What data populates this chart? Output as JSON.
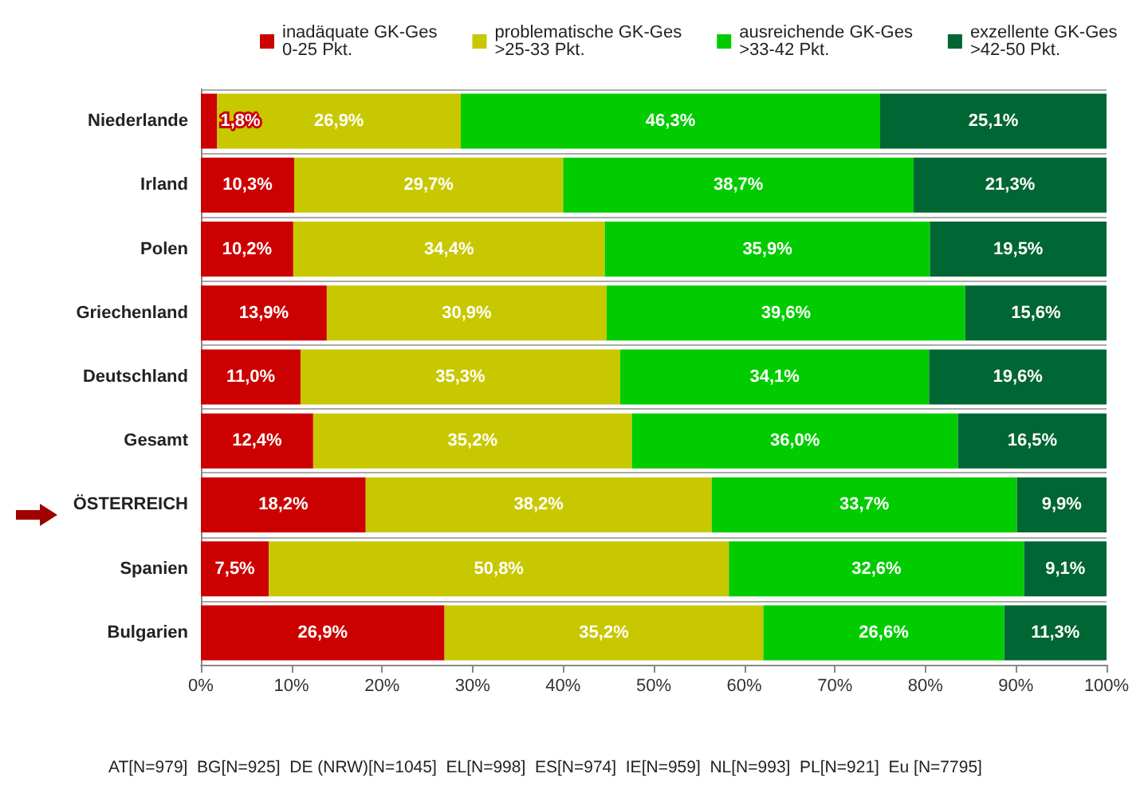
{
  "chart_data": {
    "type": "bar",
    "orientation": "horizontal",
    "stacked": true,
    "categories": [
      "Niederlande",
      "Irland",
      "Polen",
      "Griechenland",
      "Deutschland",
      "Gesamt",
      "ÖSTERREICH",
      "Spanien",
      "Bulgarien"
    ],
    "series": [
      {
        "name": "inadäquate GK-Ges\n0-25 Pkt.",
        "color": "#cc0000",
        "values": [
          1.8,
          10.3,
          10.2,
          13.9,
          11.0,
          12.4,
          18.2,
          7.5,
          26.9
        ],
        "value_labels": [
          "1,8%",
          "10,3%",
          "10,2%",
          "13,9%",
          "11,0%",
          "12,4%",
          "18,2%",
          "7,5%",
          "26,9%"
        ]
      },
      {
        "name": "problematische GK-Ges\n>25-33 Pkt.",
        "color": "#c8c800",
        "values": [
          26.9,
          29.7,
          34.4,
          30.9,
          35.3,
          35.2,
          38.2,
          50.8,
          35.2
        ],
        "value_labels": [
          "26,9%",
          "29,7%",
          "34,4%",
          "30,9%",
          "35,3%",
          "35,2%",
          "38,2%",
          "50,8%",
          "35,2%"
        ]
      },
      {
        "name": "ausreichende GK-Ges\n>33-42 Pkt.",
        "color": "#00cc00",
        "values": [
          46.3,
          38.7,
          35.9,
          39.6,
          34.1,
          36.0,
          33.7,
          32.6,
          26.6
        ],
        "value_labels": [
          "46,3%",
          "38,7%",
          "35,9%",
          "39,6%",
          "34,1%",
          "36,0%",
          "33,7%",
          "32,6%",
          "26,6%"
        ]
      },
      {
        "name": "exzellente GK-Ges\n>42-50 Pkt.",
        "color": "#006633",
        "values": [
          25.1,
          21.3,
          19.5,
          15.6,
          19.6,
          16.5,
          9.9,
          9.1,
          11.3
        ],
        "value_labels": [
          "25,1%",
          "21,3%",
          "19,5%",
          "15,6%",
          "19,6%",
          "16,5%",
          "9,9%",
          "9,1%",
          "11,3%"
        ]
      }
    ],
    "xlim": [
      0,
      100
    ],
    "xticks": [
      {
        "value": 0,
        "label": "0%"
      },
      {
        "value": 10,
        "label": "10%"
      },
      {
        "value": 20,
        "label": "20%"
      },
      {
        "value": 30,
        "label": "30%"
      },
      {
        "value": 40,
        "label": "40%"
      },
      {
        "value": 50,
        "label": "50%"
      },
      {
        "value": 60,
        "label": "60%"
      },
      {
        "value": 70,
        "label": "70%"
      },
      {
        "value": 80,
        "label": "80%"
      },
      {
        "value": 90,
        "label": "90%"
      },
      {
        "value": 100,
        "label": "100%"
      }
    ],
    "grid": "y",
    "legend": "top",
    "annotations": [
      "AT[N=979]  BG[N=925]  DE (NRW)[N=1045]  EL[N=998]  ES[N=974]  IE[N=959]  NL[N=993]  PL[N=921]  Eu [N=7795]"
    ]
  }
}
